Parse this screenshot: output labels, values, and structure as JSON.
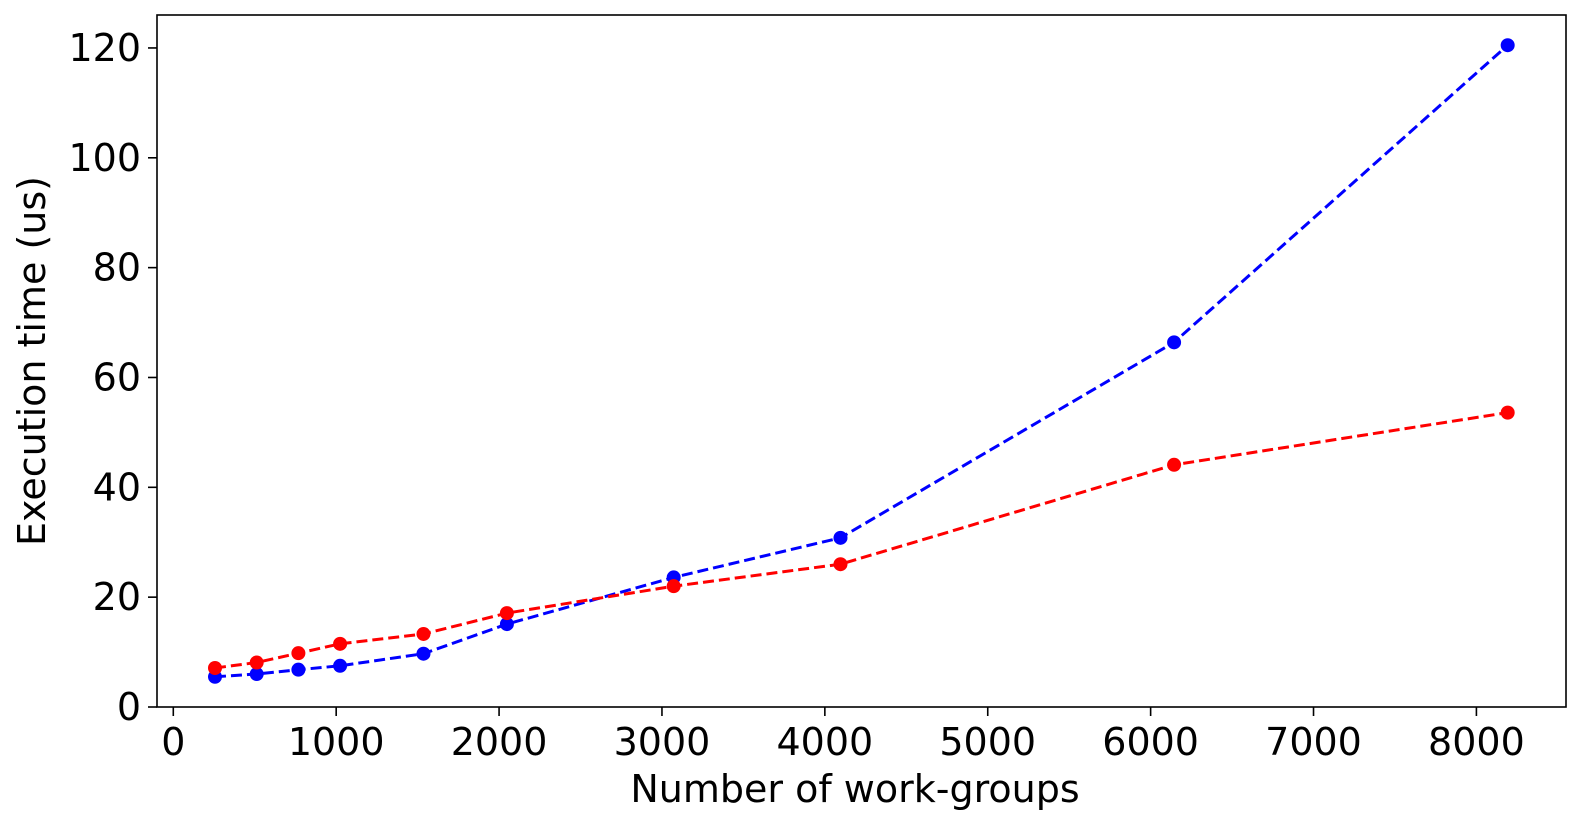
{
  "chart_data": {
    "type": "line",
    "title": "",
    "xlabel": "Number of work-groups",
    "ylabel": "Execution time (us)",
    "xlim": [
      -100,
      8550
    ],
    "ylim": [
      0,
      126
    ],
    "xticks": [
      0,
      1000,
      2000,
      3000,
      4000,
      5000,
      6000,
      7000,
      8000
    ],
    "yticks": [
      0,
      20,
      40,
      60,
      80,
      100,
      120
    ],
    "grid": false,
    "legend": "none",
    "series": [
      {
        "color": "#0000ff",
        "line_style": "dashed",
        "marker": "circle",
        "x": [
          256,
          512,
          768,
          1024,
          1536,
          2048,
          3072,
          4096,
          6144,
          8192
        ],
        "y": [
          5.5,
          6.0,
          6.8,
          7.5,
          9.7,
          15.1,
          23.6,
          30.8,
          66.4,
          120.5
        ]
      },
      {
        "color": "#ff0000",
        "line_style": "dashed",
        "marker": "circle",
        "x": [
          256,
          512,
          768,
          1024,
          1536,
          2048,
          3072,
          4096,
          6144,
          8192
        ],
        "y": [
          7.1,
          8.1,
          9.8,
          11.5,
          13.3,
          17.1,
          22.0,
          26.0,
          44.1,
          53.6
        ]
      }
    ]
  }
}
